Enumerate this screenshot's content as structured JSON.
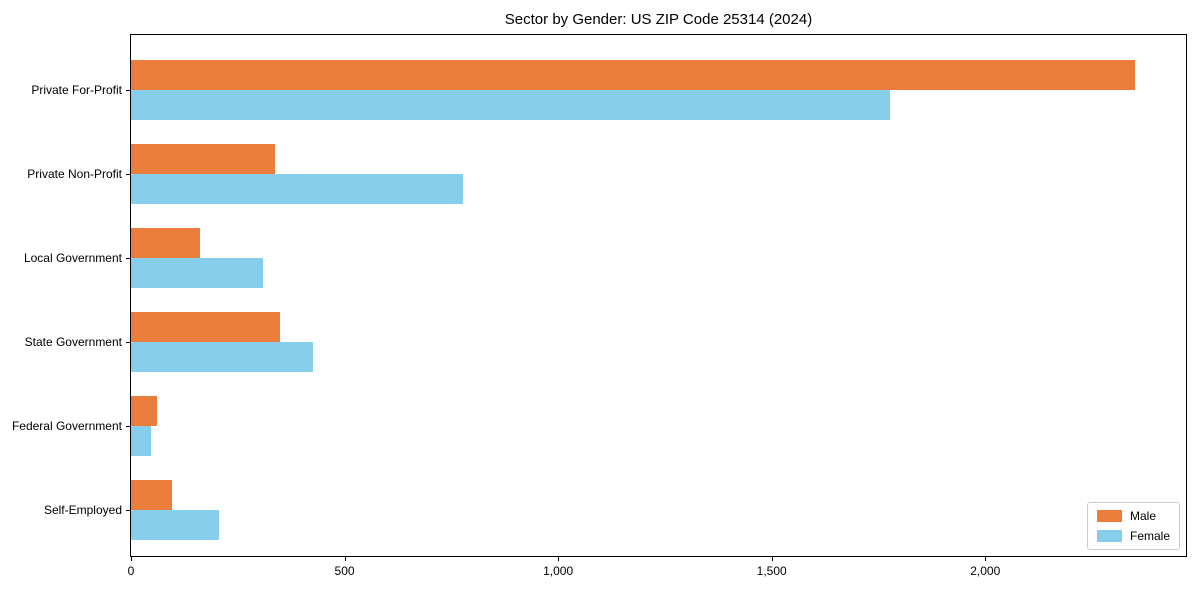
{
  "title": "Sector by Gender: US ZIP Code 25314 (2024)",
  "colors": {
    "male": "#EA7C3C",
    "female": "#87CEEB",
    "axis": "#000000",
    "legend_border": "#CCCCCC",
    "background": "#FFFFFF"
  },
  "legend": {
    "items": [
      {
        "label": "Male",
        "color": "#EA7C3C"
      },
      {
        "label": "Female",
        "color": "#87CEEB"
      }
    ]
  },
  "chart_data": {
    "type": "bar",
    "orientation": "horizontal",
    "title": "Sector by Gender: US ZIP Code 25314 (2024)",
    "categories": [
      "Private For-Profit",
      "Private Non-Profit",
      "Local Government",
      "State Government",
      "Federal Government",
      "Self-Employed"
    ],
    "series": [
      {
        "name": "Male",
        "color": "#EA7C3C",
        "values": [
          2350,
          336,
          162,
          350,
          60,
          95
        ]
      },
      {
        "name": "Female",
        "color": "#87CEEB",
        "values": [
          1778,
          778,
          310,
          426,
          46,
          205
        ]
      }
    ],
    "xlabel": "",
    "ylabel": "",
    "xlim": [
      0,
      2470
    ],
    "x_ticks": [
      0,
      500,
      1000,
      1500,
      2000
    ],
    "x_tick_labels": [
      "0",
      "500",
      "1,000",
      "1,500",
      "2,000"
    ],
    "grid": false,
    "legend_position": "lower right"
  }
}
